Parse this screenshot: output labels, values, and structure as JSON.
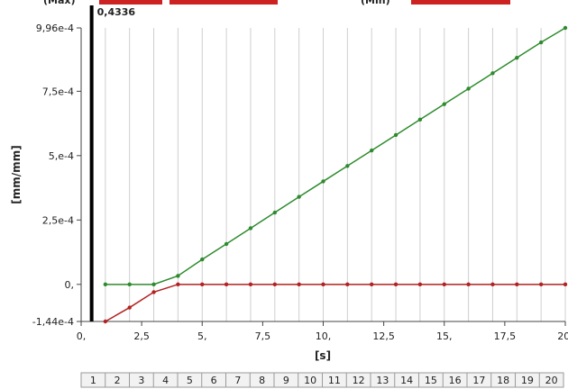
{
  "chart_data": {
    "type": "line",
    "xlabel": "[s]",
    "ylabel": "[mm/mm]",
    "xlim": [
      0,
      20
    ],
    "ylim": [
      -0.000144,
      0.000996
    ],
    "grid": "vertical",
    "x_ticks": [
      {
        "value": 0,
        "label": "0,"
      },
      {
        "value": 2.5,
        "label": "2,5"
      },
      {
        "value": 5,
        "label": "5,"
      },
      {
        "value": 7.5,
        "label": "7,5"
      },
      {
        "value": 10,
        "label": "10,"
      },
      {
        "value": 12.5,
        "label": "12,5"
      },
      {
        "value": 15,
        "label": "15,"
      },
      {
        "value": 17.5,
        "label": "17,5"
      },
      {
        "value": 20,
        "label": "20,"
      }
    ],
    "y_ticks": [
      {
        "value": 0.000996,
        "label": "9,96e-4"
      },
      {
        "value": 0.00075,
        "label": "7,5e-4"
      },
      {
        "value": 0.0005,
        "label": "5,e-4"
      },
      {
        "value": 0.00025,
        "label": "2,5e-4"
      },
      {
        "value": 0,
        "label": "0,"
      },
      {
        "value": -0.000144,
        "label": "-1,44e-4"
      }
    ],
    "x": [
      1,
      2,
      3,
      4,
      5,
      6,
      7,
      8,
      9,
      10,
      11,
      12,
      13,
      14,
      15,
      16,
      17,
      18,
      19,
      20
    ],
    "series": [
      {
        "color": "#2e8b2e",
        "values": [
          0,
          0,
          0,
          3.3e-05,
          9.7e-05,
          0.000157,
          0.000218,
          0.000279,
          0.00034,
          0.0004,
          0.00046,
          0.00052,
          0.00058,
          0.00064,
          0.0007,
          0.00076,
          0.00082,
          0.00088,
          0.00094,
          0.000996
        ]
      },
      {
        "color": "#b22222",
        "values": [
          -0.000144,
          -9e-05,
          -3e-05,
          0,
          0,
          0,
          0,
          0,
          0,
          0,
          0,
          0,
          0,
          0,
          0,
          0,
          0,
          0,
          0,
          0
        ]
      }
    ],
    "marker": {
      "x": 0.4336,
      "label": "0,4336"
    },
    "steps": [
      "1",
      "2",
      "3",
      "4",
      "5",
      "6",
      "7",
      "8",
      "9",
      "10",
      "11",
      "12",
      "13",
      "14",
      "15",
      "16",
      "17",
      "18",
      "19",
      "20"
    ],
    "legend": [
      "(Max)",
      "(Min)"
    ]
  },
  "colors": {
    "grid": "#cfcfcf",
    "axis": "#444444",
    "marker": "#000000",
    "legend_scribble": "#cc2222"
  }
}
